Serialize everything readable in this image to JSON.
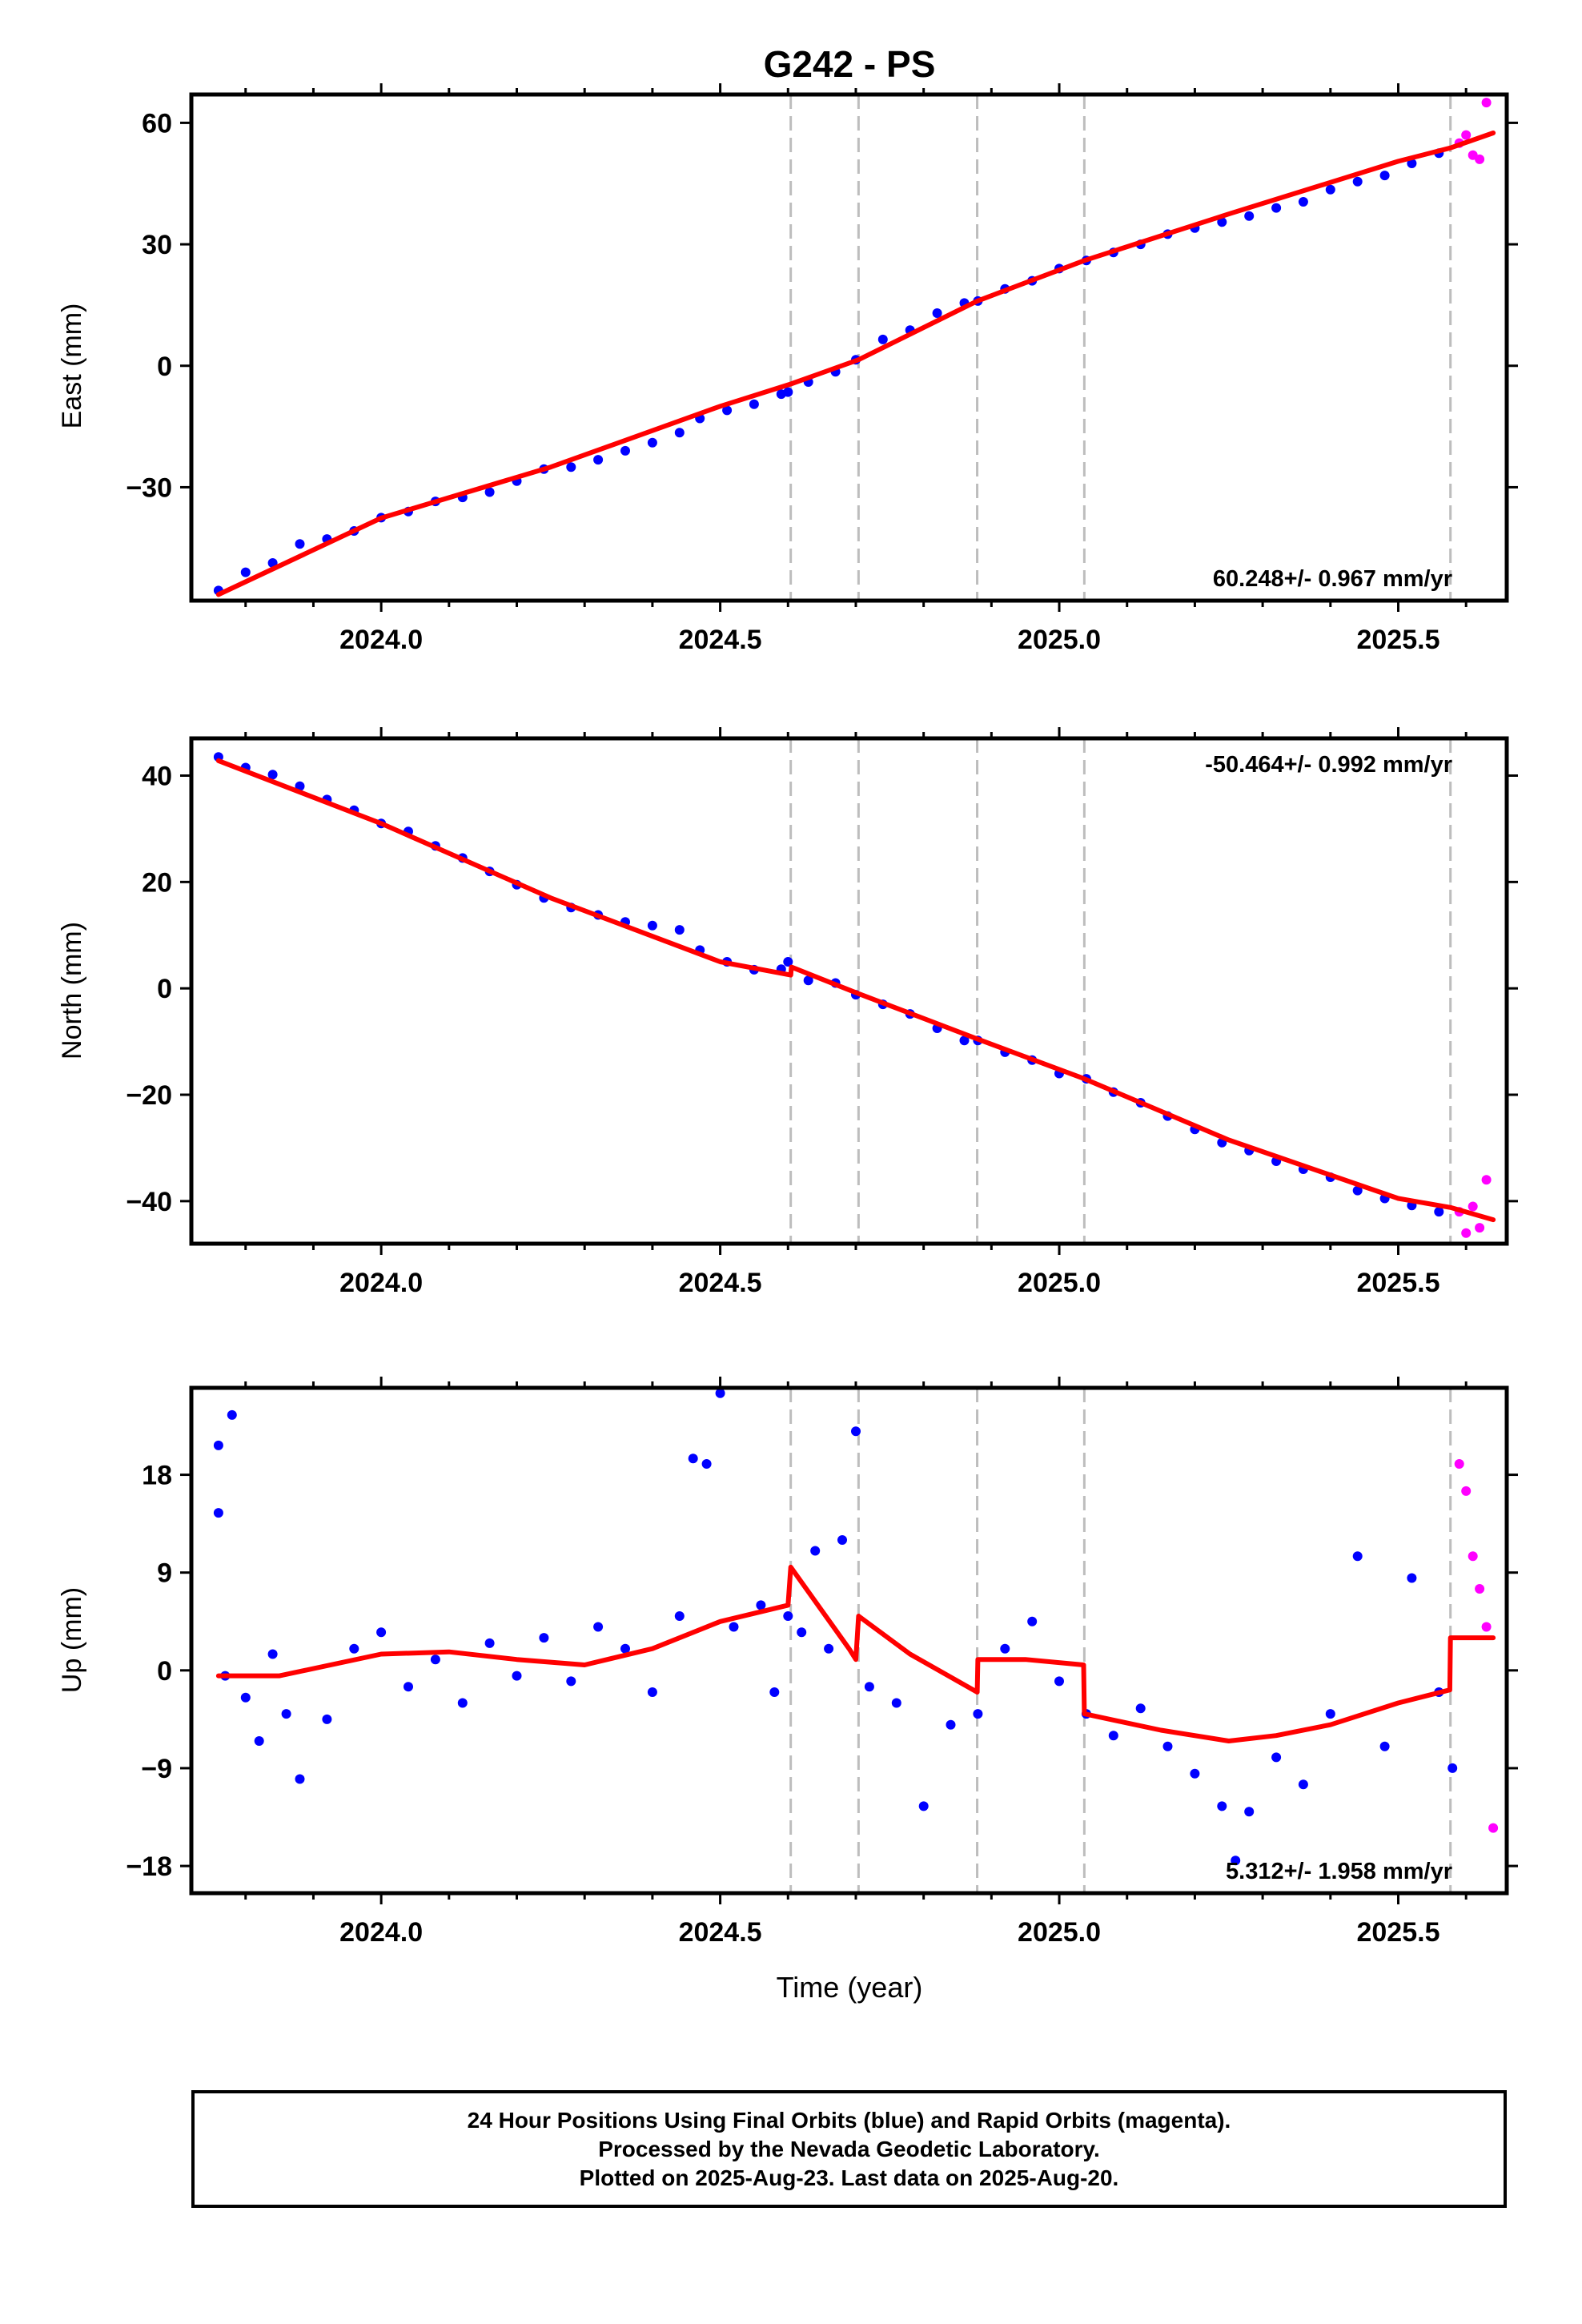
{
  "chart_data": [
    {
      "type": "scatter",
      "title": "G242 - PS",
      "ylabel": "East (mm)",
      "xlim": [
        2023.72,
        2025.66
      ],
      "ylim": [
        -58,
        67
      ],
      "xticks": [
        2024.0,
        2024.5,
        2025.0,
        2025.5
      ],
      "xtick_labels": [
        "2024.0",
        "2024.5",
        "2025.0",
        "2025.5"
      ],
      "yticks": [
        -30,
        0,
        30,
        60
      ],
      "ytick_labels": [
        "−30",
        "0",
        "30",
        "60"
      ],
      "rate_label": "60.248+/- 0.967 mm/yr",
      "step_epochs": [
        2024.604,
        2024.704,
        2024.879,
        2025.037,
        2025.577
      ],
      "series": [
        {
          "marker": "dot",
          "color": "#0000ff",
          "x": [
            2023.76,
            2023.8,
            2023.84,
            2023.88,
            2023.92,
            2023.96,
            2024.0,
            2024.04,
            2024.08,
            2024.12,
            2024.16,
            2024.2,
            2024.24,
            2024.28,
            2024.32,
            2024.36,
            2024.4,
            2024.44,
            2024.47,
            2024.51,
            2024.55,
            2024.59,
            2024.6,
            2024.63,
            2024.67,
            2024.7,
            2024.74,
            2024.78,
            2024.82,
            2024.86,
            2024.88,
            2024.92,
            2024.96,
            2025.0,
            2025.04,
            2025.08,
            2025.12,
            2025.16,
            2025.2,
            2025.24,
            2025.28,
            2025.32,
            2025.36,
            2025.4,
            2025.44,
            2025.48,
            2025.52,
            2025.56
          ],
          "y": [
            -55.5,
            -51.0,
            -48.7,
            -44.0,
            -42.8,
            -40.8,
            -37.5,
            -36.0,
            -33.5,
            -32.5,
            -31.2,
            -28.5,
            -25.5,
            -25.0,
            -23.2,
            -21.0,
            -19.0,
            -16.5,
            -13.0,
            -11.0,
            -9.5,
            -7.0,
            -6.5,
            -4.0,
            -1.5,
            1.5,
            6.5,
            8.8,
            13.0,
            15.5,
            16.0,
            19.0,
            21.0,
            24.0,
            26.0,
            28.0,
            30.0,
            32.5,
            34.0,
            35.5,
            37.0,
            39.0,
            40.5,
            43.5,
            45.5,
            47.0,
            50.0,
            52.5
          ]
        },
        {
          "marker": "dot",
          "color": "#ff00ff",
          "x": [
            2025.59,
            2025.6,
            2025.61,
            2025.62,
            2025.63
          ],
          "y": [
            55,
            57,
            52,
            51,
            65
          ]
        },
        {
          "marker": "line",
          "color": "#ff0000",
          "name": "",
          "x": [
            2023.76,
            2024.0,
            2024.25,
            2024.5,
            2024.604,
            2024.704,
            2024.879,
            2025.037,
            2025.25,
            2025.5,
            2025.577,
            2025.64
          ],
          "y": [
            -56.5,
            -37.6,
            -25.0,
            -10.0,
            -4.5,
            1.5,
            16.0,
            26.0,
            37.5,
            50.5,
            53.8,
            57.5
          ]
        }
      ]
    },
    {
      "type": "scatter",
      "ylabel": "North (mm)",
      "xlim": [
        2023.72,
        2025.66
      ],
      "ylim": [
        -48,
        47
      ],
      "xticks": [
        2024.0,
        2024.5,
        2025.0,
        2025.5
      ],
      "xtick_labels": [
        "2024.0",
        "2024.5",
        "2025.0",
        "2025.5"
      ],
      "yticks": [
        -40,
        -20,
        0,
        20,
        40
      ],
      "ytick_labels": [
        "−40",
        "−20",
        "0",
        "20",
        "40"
      ],
      "rate_label": "-50.464+/- 0.992 mm/yr",
      "step_epochs": [
        2024.604,
        2024.704,
        2024.879,
        2025.037,
        2025.577
      ],
      "series": [
        {
          "marker": "dot",
          "color": "#0000ff",
          "x": [
            2023.76,
            2023.8,
            2023.84,
            2023.88,
            2023.92,
            2023.96,
            2024.0,
            2024.04,
            2024.08,
            2024.12,
            2024.16,
            2024.2,
            2024.24,
            2024.28,
            2024.32,
            2024.36,
            2024.4,
            2024.44,
            2024.47,
            2024.51,
            2024.55,
            2024.59,
            2024.6,
            2024.63,
            2024.67,
            2024.7,
            2024.74,
            2024.78,
            2024.82,
            2024.86,
            2024.88,
            2024.92,
            2024.96,
            2025.0,
            2025.04,
            2025.08,
            2025.12,
            2025.16,
            2025.2,
            2025.24,
            2025.28,
            2025.32,
            2025.36,
            2025.4,
            2025.44,
            2025.48,
            2025.52,
            2025.56
          ],
          "y": [
            43.5,
            41.5,
            40.2,
            38.0,
            35.5,
            33.5,
            31.0,
            29.5,
            26.8,
            24.5,
            22.0,
            19.5,
            17.0,
            15.2,
            13.8,
            12.5,
            11.8,
            11.0,
            7.2,
            5.0,
            3.5,
            3.6,
            5.0,
            1.5,
            1.0,
            -1.2,
            -3.0,
            -4.8,
            -7.5,
            -9.8,
            -9.8,
            -12.0,
            -13.5,
            -16.0,
            -17.0,
            -19.5,
            -21.5,
            -24.0,
            -26.5,
            -29.0,
            -30.5,
            -32.5,
            -34.0,
            -35.5,
            -38.0,
            -39.5,
            -40.8,
            -42.0
          ]
        },
        {
          "marker": "dot",
          "color": "#ff00ff",
          "x": [
            2025.59,
            2025.6,
            2025.61,
            2025.62,
            2025.63
          ],
          "y": [
            -42,
            -46,
            -41,
            -45,
            -36
          ]
        },
        {
          "marker": "line",
          "color": "#ff0000",
          "name": "",
          "x": [
            2023.76,
            2024.0,
            2024.25,
            2024.5,
            2024.604,
            2024.605,
            2024.704,
            2024.879,
            2025.037,
            2025.25,
            2025.5,
            2025.577,
            2025.64
          ],
          "y": [
            42.8,
            31.0,
            17.0,
            5.0,
            2.5,
            4.0,
            -1.0,
            -9.5,
            -17.0,
            -28.5,
            -39.5,
            -41.2,
            -43.5
          ]
        }
      ]
    },
    {
      "type": "scatter",
      "ylabel": "Up (mm)",
      "xlabel": "Time (year)",
      "xlim": [
        2023.72,
        2025.66
      ],
      "ylim": [
        -20.5,
        26
      ],
      "xticks": [
        2024.0,
        2024.5,
        2025.0,
        2025.5
      ],
      "xtick_labels": [
        "2024.0",
        "2024.5",
        "2025.0",
        "2025.5"
      ],
      "yticks": [
        -18,
        -9,
        0,
        9,
        18
      ],
      "ytick_labels": [
        "−18",
        "−9",
        "0",
        "9",
        "18"
      ],
      "rate_label": "5.312+/- 1.958 mm/yr",
      "step_epochs": [
        2024.604,
        2024.704,
        2024.879,
        2025.037,
        2025.577
      ],
      "series": [
        {
          "marker": "dot",
          "color": "#0000ff",
          "x": [
            2023.76,
            2023.76,
            2023.77,
            2023.78,
            2023.8,
            2023.82,
            2023.84,
            2023.86,
            2023.88,
            2023.92,
            2023.96,
            2024.0,
            2024.04,
            2024.08,
            2024.12,
            2024.16,
            2024.2,
            2024.24,
            2024.28,
            2024.32,
            2024.36,
            2024.4,
            2024.44,
            2024.46,
            2024.48,
            2024.5,
            2024.52,
            2024.56,
            2024.58,
            2024.6,
            2024.62,
            2024.64,
            2024.66,
            2024.68,
            2024.7,
            2024.72,
            2024.76,
            2024.8,
            2024.84,
            2024.88,
            2024.92,
            2024.96,
            2025.0,
            2025.04,
            2025.08,
            2025.12,
            2025.16,
            2025.2,
            2025.24,
            2025.26,
            2025.28,
            2025.32,
            2025.36,
            2025.4,
            2025.44,
            2025.48,
            2025.52,
            2025.56,
            2025.58
          ],
          "y": [
            14.5,
            20.7,
            -0.5,
            23.5,
            -2.5,
            -6.5,
            1.5,
            -4.0,
            -10.0,
            -4.5,
            2.0,
            3.5,
            -1.5,
            1.0,
            -3.0,
            2.5,
            -0.5,
            3.0,
            -1.0,
            4.0,
            2.0,
            -2.0,
            5.0,
            19.5,
            19.0,
            25.5,
            4.0,
            6.0,
            -2.0,
            5.0,
            3.5,
            11.0,
            2.0,
            12.0,
            22.0,
            -1.5,
            -3.0,
            -12.5,
            -5.0,
            -4.0,
            2.0,
            4.5,
            -1.0,
            -4.0,
            -6.0,
            -3.5,
            -7.0,
            -9.5,
            -12.5,
            -17.5,
            -13.0,
            -8.0,
            -10.5,
            -4.0,
            10.5,
            -7.0,
            8.5,
            -2.0,
            -9.0
          ]
        },
        {
          "marker": "dot",
          "color": "#ff00ff",
          "x": [
            2025.59,
            2025.6,
            2025.61,
            2025.62,
            2025.63,
            2025.64
          ],
          "y": [
            19,
            16.5,
            10.5,
            7.5,
            4,
            -14.5
          ]
        },
        {
          "marker": "line",
          "color": "#ff0000",
          "name": "",
          "x": [
            2023.76,
            2023.85,
            2024.0,
            2024.1,
            2024.2,
            2024.3,
            2024.4,
            2024.5,
            2024.6,
            2024.604,
            2024.69,
            2024.7,
            2024.704,
            2024.78,
            2024.879,
            2024.88,
            2024.95,
            2025.036,
            2025.037,
            2025.15,
            2025.25,
            2025.32,
            2025.4,
            2025.5,
            2025.576,
            2025.577,
            2025.64
          ],
          "y": [
            -0.5,
            -0.5,
            1.5,
            1.7,
            1.0,
            0.5,
            2.0,
            4.5,
            6.0,
            9.5,
            2.0,
            1.0,
            5.0,
            1.5,
            -2.0,
            1.0,
            1.0,
            0.5,
            -4.0,
            -5.5,
            -6.5,
            -6.0,
            -5.0,
            -3.0,
            -1.8,
            3.0,
            3.0
          ]
        }
      ]
    }
  ],
  "caption": {
    "line1": "24 Hour Positions Using Final Orbits (blue) and Rapid Orbits (magenta).",
    "line2": "Processed by the Nevada Geodetic Laboratory.",
    "line3": "Plotted on 2025-Aug-23. Last data on 2025-Aug-20."
  }
}
